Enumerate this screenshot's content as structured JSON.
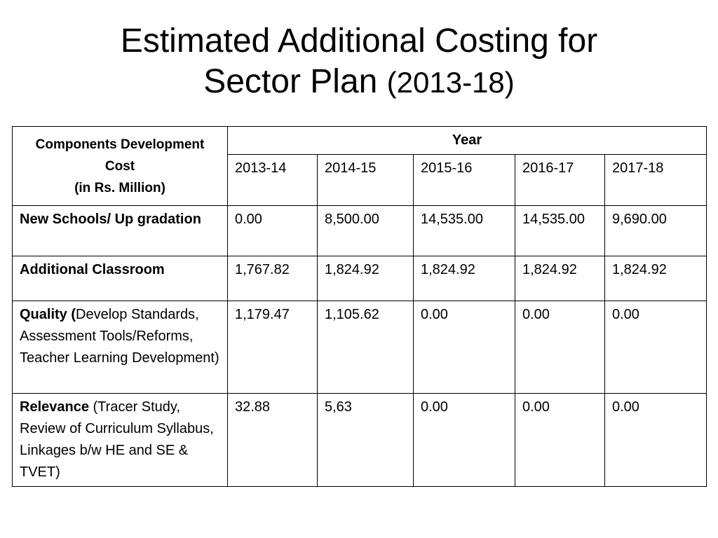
{
  "title": {
    "line1": "Estimated Additional Costing for",
    "line2_main": "Sector Plan ",
    "line2_years": "(2013-18)"
  },
  "table": {
    "component_header_line1": "Components Development Cost",
    "component_header_line2": "(in Rs. Million)",
    "year_header": "Year",
    "years": [
      "2013-14",
      "2014-15",
      "2015-16",
      "2016-17",
      "2017-18"
    ],
    "rows": [
      {
        "label_bold": "New Schools/ Up gradation",
        "label_rest": "",
        "values": [
          "0.00",
          "8,500.00",
          "14,535.00",
          "14,535.00",
          "9,690.00"
        ]
      },
      {
        "label_bold": "Additional Classroom",
        "label_rest": "",
        "values": [
          "1,767.82",
          "1,824.92",
          "1,824.92",
          "1,824.92",
          "1,824.92"
        ]
      },
      {
        "label_bold": "Quality (",
        "label_rest": "Develop Standards,  Assessment Tools/Reforms,  Teacher Learning Development)",
        "values": [
          "1,179.47",
          "1,105.62",
          "0.00",
          "0.00",
          "0.00"
        ]
      },
      {
        "label_bold": "Relevance",
        "label_rest": " (Tracer Study, Review of Curriculum Syllabus, Linkages b/w HE and SE & TVET)",
        "values": [
          "32.88",
          "5,63",
          "0.00",
          "0.00",
          "0.00"
        ]
      }
    ]
  }
}
